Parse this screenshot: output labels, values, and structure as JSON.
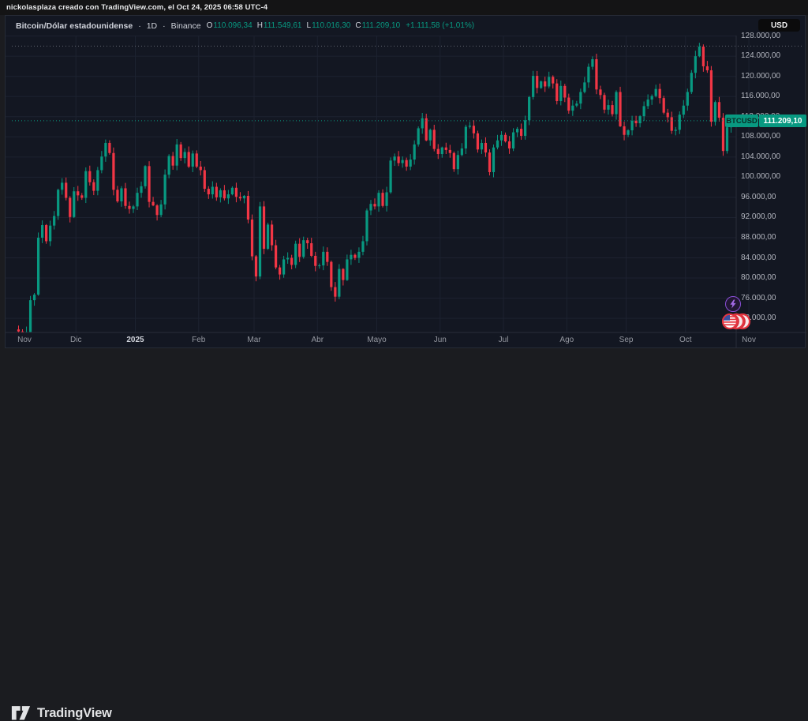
{
  "attribution": {
    "text": "nickolasplaza creado con TradingView.com, el Oct 24, 2025 06:58 UTC-4"
  },
  "header": {
    "symbol": "Bitcoin/Dólar estadounidense",
    "separator": "·",
    "interval": "1D",
    "exchange": "Binance",
    "ohlc": [
      {
        "label": "O",
        "value": "110.096,34"
      },
      {
        "label": "H",
        "value": "111.549,61"
      },
      {
        "label": "L",
        "value": "110.016,30"
      },
      {
        "label": "C",
        "value": "111.209,10"
      }
    ],
    "change": "+1.111,58 (+1,01%)"
  },
  "currency_button": {
    "label": "USD"
  },
  "price_label": {
    "symbol": "BTCUSD",
    "price": "111.209,10"
  },
  "price_scale": {
    "ticks": [
      {
        "k": 128,
        "label": "128.000,00"
      },
      {
        "k": 124,
        "label": "124.000,00"
      },
      {
        "k": 120,
        "label": "120.000,00"
      },
      {
        "k": 116,
        "label": "116.000,00"
      },
      {
        "k": 112,
        "label": "112.000,00"
      },
      {
        "k": 108,
        "label": "108.000,00"
      },
      {
        "k": 104,
        "label": "104.000,00"
      },
      {
        "k": 100,
        "label": "100.000,00"
      },
      {
        "k": 96,
        "label": "96.000,00"
      },
      {
        "k": 92,
        "label": "92.000,00"
      },
      {
        "k": 88,
        "label": "88.000,00"
      },
      {
        "k": 84,
        "label": "84.000,00"
      },
      {
        "k": 80,
        "label": "80.000,00"
      },
      {
        "k": 76,
        "label": "76.000,00"
      },
      {
        "k": 72,
        "label": "72.000,00"
      }
    ]
  },
  "time_scale": {
    "months": [
      {
        "label": "Nov",
        "i": 2,
        "grid": false,
        "bold": false
      },
      {
        "label": "Dic",
        "i": 15,
        "grid": true,
        "bold": false
      },
      {
        "label": "2025",
        "i": 30,
        "grid": true,
        "bold": true
      },
      {
        "label": "Feb",
        "i": 46,
        "grid": true,
        "bold": false
      },
      {
        "label": "Mar",
        "i": 60,
        "grid": true,
        "bold": false
      },
      {
        "label": "Abr",
        "i": 76,
        "grid": true,
        "bold": false
      },
      {
        "label": "Mayo",
        "i": 91,
        "grid": true,
        "bold": false
      },
      {
        "label": "Jun",
        "i": 107,
        "grid": true,
        "bold": false
      },
      {
        "label": "Jul",
        "i": 123,
        "grid": true,
        "bold": false
      },
      {
        "label": "Ago",
        "i": 139,
        "grid": true,
        "bold": false
      },
      {
        "label": "Sep",
        "i": 154,
        "grid": true,
        "bold": false
      },
      {
        "label": "Oct",
        "i": 169,
        "grid": true,
        "bold": false
      },
      {
        "label": "Nov",
        "i": 185,
        "grid": true,
        "bold": false
      }
    ]
  },
  "chart_data": {
    "type": "candlestick",
    "title": "BTCUSD · 1D · Binance",
    "x_range": [
      "Nov 2024",
      "Oct 24, 2025"
    ],
    "unit": "thousands of USD, es-ES number format",
    "y_axis": {
      "min_k": 69.2,
      "max_k": 128.1,
      "tick_step_k": 4
    },
    "grid": true,
    "first_open_k": 69.8,
    "closes_k": [
      69.4,
      68.9,
      69.3,
      75.6,
      76.7,
      88.0,
      90.5,
      87.3,
      90.4,
      92.3,
      97.5,
      98.9,
      95.9,
      92.1,
      97.2,
      96.4,
      95.9,
      101.2,
      99.0,
      97.3,
      101.4,
      104.1,
      106.8,
      104.8,
      97.5,
      95.2,
      97.8,
      94.3,
      93.7,
      94.2,
      96.9,
      98.2,
      102.2,
      95.1,
      94.4,
      92.5,
      94.6,
      100.5,
      104.2,
      102.3,
      106.5,
      103.8,
      105.0,
      102.1,
      104.7,
      102.1,
      101.4,
      97.7,
      96.6,
      98.1,
      96.0,
      97.4,
      95.8,
      96.6,
      97.9,
      96.1,
      95.8,
      96.3,
      91.6,
      84.3,
      80.3,
      94.2,
      85.8,
      90.6,
      86.5,
      82.1,
      80.7,
      83.7,
      84.0,
      82.6,
      86.8,
      84.2,
      87.5,
      86.9,
      84.4,
      82.4,
      82.5,
      85.2,
      83.2,
      78.2,
      76.3,
      81.8,
      79.6,
      83.7,
      84.6,
      84.0,
      85.2,
      87.3,
      93.4,
      94.7,
      94.2,
      96.9,
      94.3,
      97.0,
      103.3,
      104.1,
      102.8,
      103.4,
      102.1,
      103.5,
      106.5,
      109.7,
      111.7,
      107.3,
      109.4,
      105.6,
      104.6,
      105.9,
      105.4,
      104.8,
      101.6,
      104.4,
      105.7,
      110.0,
      110.2,
      108.7,
      105.5,
      106.8,
      104.9,
      101.0,
      105.9,
      107.3,
      108.4,
      107.1,
      105.7,
      108.9,
      109.6,
      108.2,
      111.3,
      115.9,
      120.1,
      117.7,
      119.0,
      118.0,
      119.9,
      118.6,
      115.1,
      118.1,
      115.8,
      113.2,
      114.2,
      114.6,
      116.9,
      118.8,
      121.9,
      123.4,
      117.4,
      116.3,
      113.4,
      114.3,
      112.5,
      116.9,
      110.1,
      108.4,
      109.3,
      111.2,
      110.7,
      112.1,
      114.1,
      115.4,
      116.1,
      117.5,
      115.7,
      112.8,
      111.9,
      109.2,
      109.4,
      112.4,
      114.2,
      116.9,
      120.7,
      124.0,
      125.9,
      122.0,
      121.2,
      111.0,
      114.9,
      111.8,
      105.2,
      109.9,
      111.2
    ],
    "last_price_k": 111.2091,
    "last_price_label": "111.209,10",
    "prev_high_line_k": 126.0,
    "colors": {
      "up": "#089981",
      "down": "#f23645",
      "grid": "#1d2230",
      "axis_text": "#b2b5be",
      "last_price_line": "#089981",
      "prev_high_line": "#60646e",
      "background": "#131722"
    }
  },
  "logo": {
    "text": "TradingView"
  }
}
